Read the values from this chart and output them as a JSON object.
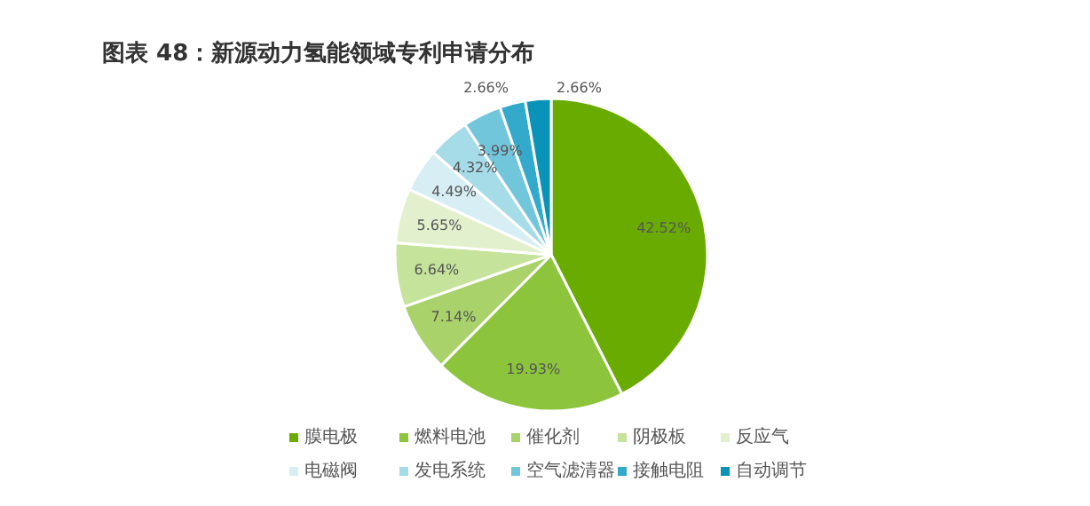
{
  "chart_data": {
    "type": "pie",
    "title": "图表 48：新源动力氢能领域专利申请分布",
    "categories": [
      "膜电极",
      "燃料电池",
      "催化剂",
      "阴极板",
      "反应气",
      "电磁阀",
      "发电系统",
      "空气滤清器",
      "接触电阻",
      "自动调节"
    ],
    "values": [
      42.52,
      19.93,
      7.14,
      6.64,
      5.65,
      4.49,
      4.32,
      3.99,
      2.66,
      2.66
    ],
    "value_labels": [
      "42.52%",
      "19.93%",
      "7.14%",
      "6.64%",
      "5.65%",
      "4.49%",
      "4.32%",
      "3.99%",
      "2.66%",
      "2.66%"
    ],
    "colors": [
      "#6aab00",
      "#8cc43c",
      "#a9d36a",
      "#c6e39b",
      "#e3f0cd",
      "#d6eef4",
      "#a6dbe8",
      "#72c6dc",
      "#33aacb",
      "#0a93b8"
    ],
    "legend": "bottom"
  }
}
